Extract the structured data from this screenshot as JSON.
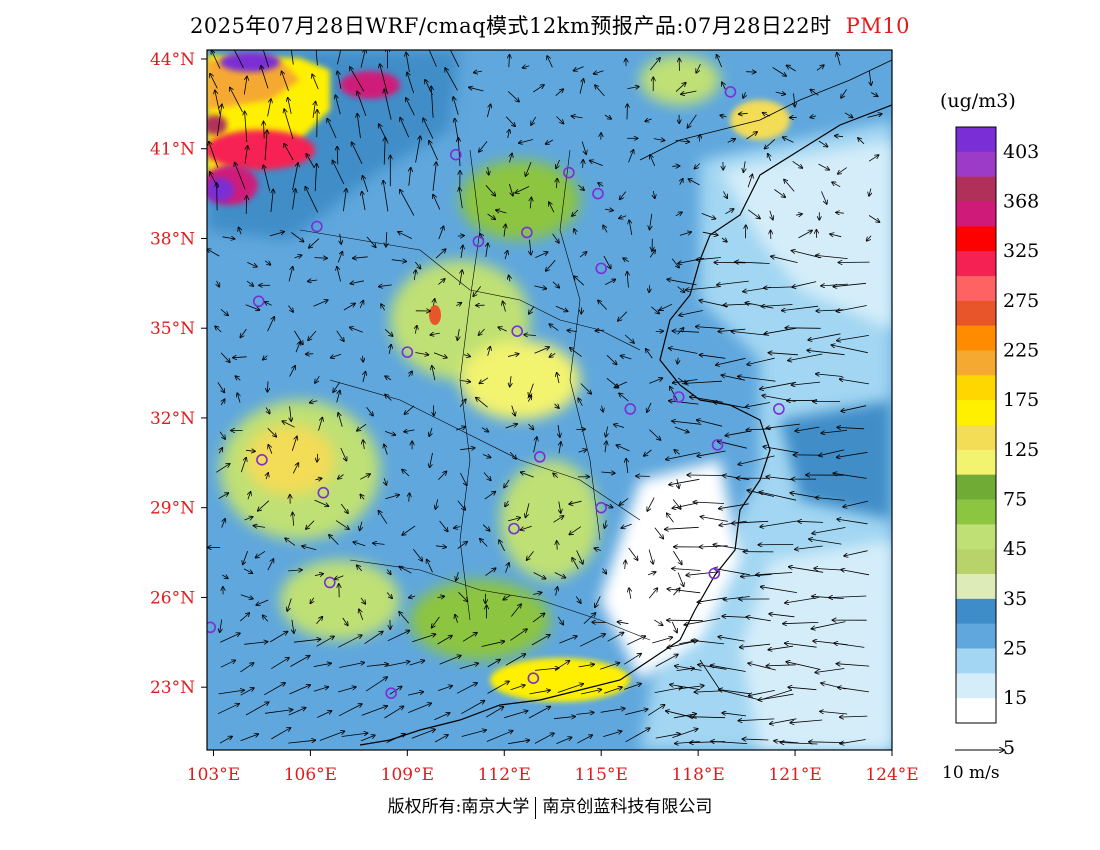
{
  "title": {
    "main": "2025年07月28日WRF/cmaq模式12km预报产品:07月28日22时",
    "variable": "PM10"
  },
  "map": {
    "lat_labels": [
      "44°N",
      "41°N",
      "38°N",
      "35°N",
      "32°N",
      "29°N",
      "26°N",
      "23°N"
    ],
    "lon_labels": [
      "103°E",
      "106°E",
      "109°E",
      "112°E",
      "115°E",
      "118°E",
      "121°E",
      "124°E"
    ],
    "lat_range": [
      20.9,
      44.3
    ],
    "lon_range": [
      102.8,
      124.0
    ],
    "colors": {
      "label_red": "#e31a1c",
      "coast": "#000000"
    }
  },
  "legend": {
    "unit": "(ug/m3)",
    "levels": [
      "403",
      "368",
      "325",
      "275",
      "225",
      "175",
      "125",
      "75",
      "45",
      "35",
      "25",
      "15",
      "5"
    ],
    "colors": [
      "#7a2fd6",
      "#9b3bc8",
      "#b0305a",
      "#cf1a79",
      "#ff0000",
      "#f52152",
      "#ff6262",
      "#e8552a",
      "#ff8c00",
      "#f6a930",
      "#ffd700",
      "#fff000",
      "#f3dc56",
      "#f2f36e",
      "#6fab35",
      "#8cc540",
      "#bfe074",
      "#b8d36a",
      "#dcebb8",
      "#3f8dc8",
      "#5fa7dd",
      "#a2d6f2",
      "#d4edf9",
      "#ffffff"
    ]
  },
  "wind_reference": "10 m/s",
  "footer": {
    "left": "版权所有:南京大学",
    "right": "南京创蓝科技有限公司"
  },
  "stations": [
    {
      "lon": 119.0,
      "lat": 42.9
    },
    {
      "lon": 110.5,
      "lat": 40.8
    },
    {
      "lon": 114.0,
      "lat": 40.2
    },
    {
      "lon": 114.9,
      "lat": 39.5
    },
    {
      "lon": 106.2,
      "lat": 38.4
    },
    {
      "lon": 111.2,
      "lat": 37.9
    },
    {
      "lon": 112.7,
      "lat": 38.2
    },
    {
      "lon": 115.0,
      "lat": 37.0
    },
    {
      "lon": 104.4,
      "lat": 35.9
    },
    {
      "lon": 112.4,
      "lat": 34.9
    },
    {
      "lon": 109.0,
      "lat": 34.2
    },
    {
      "lon": 117.4,
      "lat": 32.7
    },
    {
      "lon": 115.9,
      "lat": 32.3
    },
    {
      "lon": 120.5,
      "lat": 32.3
    },
    {
      "lon": 118.6,
      "lat": 31.1
    },
    {
      "lon": 104.5,
      "lat": 30.6
    },
    {
      "lon": 113.1,
      "lat": 30.7
    },
    {
      "lon": 106.4,
      "lat": 29.5
    },
    {
      "lon": 115.0,
      "lat": 29.0
    },
    {
      "lon": 112.3,
      "lat": 28.3
    },
    {
      "lon": 106.6,
      "lat": 26.5
    },
    {
      "lon": 118.5,
      "lat": 26.8
    },
    {
      "lon": 102.9,
      "lat": 25.0
    },
    {
      "lon": 112.9,
      "lat": 23.3
    },
    {
      "lon": 108.5,
      "lat": 22.8
    }
  ]
}
